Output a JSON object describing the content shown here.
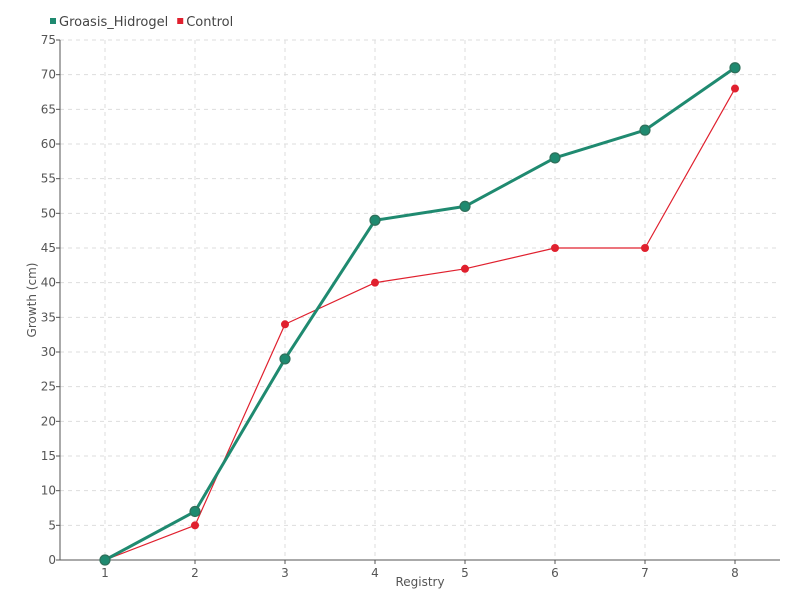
{
  "chart_data": {
    "type": "line",
    "x": [
      1,
      2,
      3,
      4,
      5,
      6,
      7,
      8
    ],
    "series": [
      {
        "name": "Groasis_Hidrogel",
        "color": "#1f8a70",
        "values": [
          0,
          7,
          29,
          49,
          51,
          58,
          62,
          71
        ]
      },
      {
        "name": "Control",
        "color": "#e0202e",
        "values": [
          0,
          5,
          34,
          40,
          42,
          45,
          45,
          68
        ]
      }
    ],
    "xlabel": "Registry",
    "ylabel": "Growth (cm)",
    "xlim": [
      0.5,
      8.5
    ],
    "ylim": [
      0,
      75
    ],
    "yticks": [
      0,
      5,
      10,
      15,
      20,
      25,
      30,
      35,
      40,
      45,
      50,
      55,
      60,
      65,
      70,
      75
    ],
    "xticks": [
      1,
      2,
      3,
      4,
      5,
      6,
      7,
      8
    ],
    "grid": true,
    "legend_position": "top-left"
  }
}
